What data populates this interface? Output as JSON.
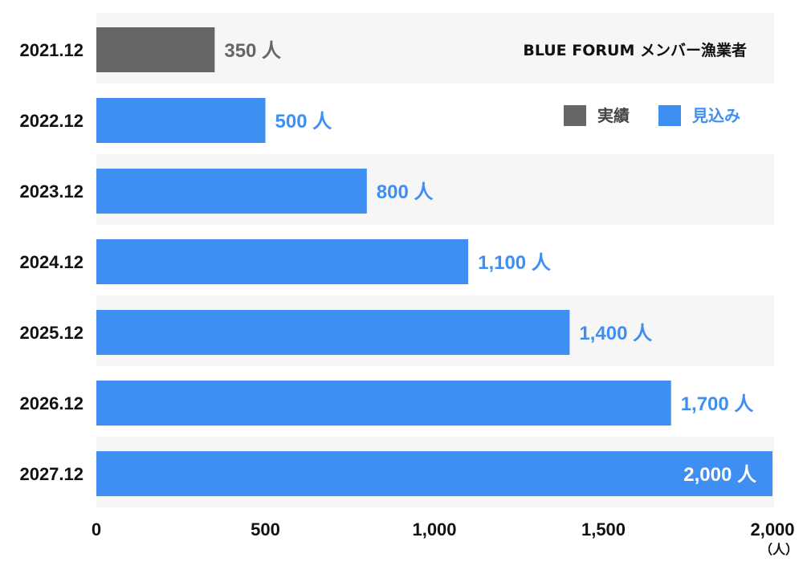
{
  "chart_data": {
    "type": "bar",
    "orientation": "horizontal",
    "title": "BLUE FORUM メンバー漁業者",
    "categories": [
      "2021.12",
      "2022.12",
      "2023.12",
      "2024.12",
      "2025.12",
      "2026.12",
      "2027.12"
    ],
    "values": [
      350,
      500,
      800,
      1100,
      1400,
      1700,
      2000
    ],
    "kinds": [
      "actual",
      "forecast",
      "forecast",
      "forecast",
      "forecast",
      "forecast",
      "forecast"
    ],
    "value_labels": [
      "350 人",
      "500 人",
      "800 人",
      "1,100 人",
      "1,400 人",
      "1,700 人",
      "2,000 人"
    ],
    "xlim": [
      0,
      2000
    ],
    "x_ticks": [
      0,
      500,
      1000,
      1500,
      2000
    ],
    "x_tick_labels": [
      "0",
      "500",
      "1,000",
      "1,500",
      "2,000"
    ],
    "x_unit": "（人）",
    "legend": {
      "position": "top-right",
      "items": [
        {
          "key": "actual",
          "label": "実績",
          "color": "#666666"
        },
        {
          "key": "forecast",
          "label": "見込み",
          "color": "#3f8ff2"
        }
      ]
    },
    "colors": {
      "actual": "#666666",
      "forecast": "#3f8ff2",
      "band": "#f6f6f6"
    }
  }
}
